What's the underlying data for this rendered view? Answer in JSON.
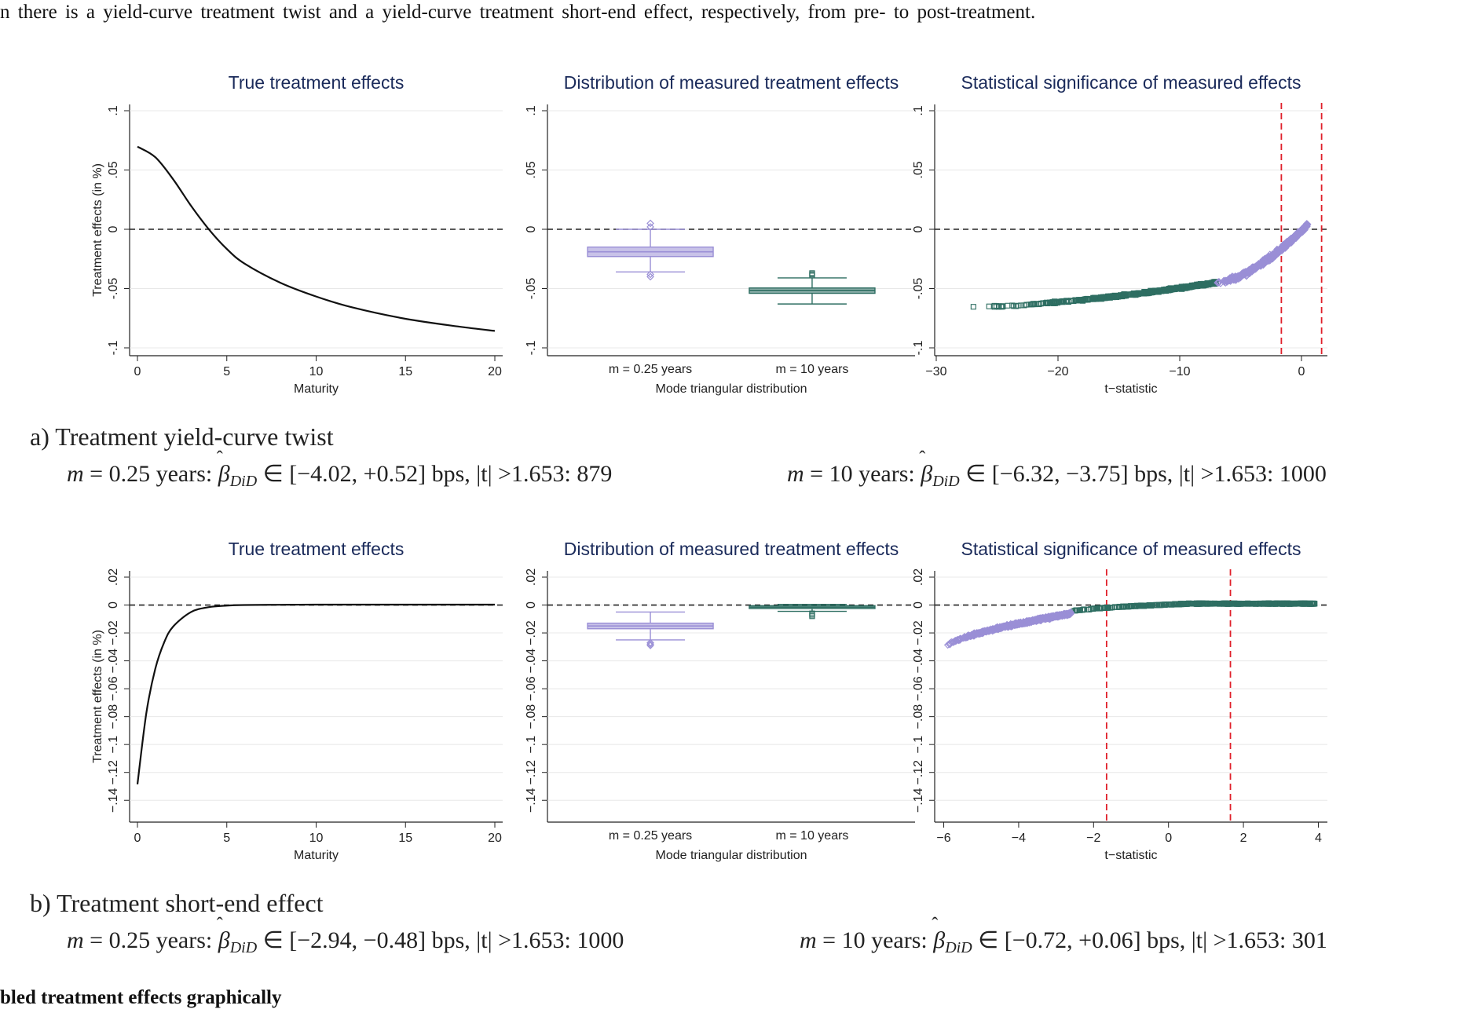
{
  "intro_text": "n there is a yield-curve treatment twist and a yield-curve treatment short-end effect, respectively, from pre- to post-treatment.",
  "footer_text": "bled treatment effects graphically",
  "colors": {
    "lavender": "#9a8fd6",
    "teal": "#2e6e62",
    "red": "#e0202a",
    "title": "#1a2a5a"
  },
  "panels": [
    {
      "caption": {
        "title": "a) Treatment yield-curve twist",
        "left": {
          "m": "m",
          "eq": "= 0.25 years:",
          "beta": "β",
          "sub": "DiD",
          "range": "∈ [−4.02, +0.52] bps, |t| >1.653:",
          "count": "879"
        },
        "right": {
          "m": "m",
          "eq": "= 10 years:",
          "beta": "β",
          "sub": "DiD",
          "range": "∈ [−6.32, −3.75] bps, |t| >1.653:",
          "count": "1000"
        }
      }
    },
    {
      "caption": {
        "title": "b) Treatment short-end effect",
        "left": {
          "m": "m",
          "eq": "= 0.25 years:",
          "beta": "β",
          "sub": "DiD",
          "range": "∈ [−2.94, −0.48] bps, |t| >1.653:",
          "count": "1000"
        },
        "right": {
          "m": "m",
          "eq": "= 10 years:",
          "beta": "β",
          "sub": "DiD",
          "range": "∈ [−0.72, +0.06] bps, |t| >1.653:",
          "count": "301"
        }
      }
    }
  ],
  "chart_data": [
    {
      "type": "line",
      "title": "True treatment effects",
      "xlabel": "Maturity",
      "ylabel": "Treatment effects (in %)",
      "xlim": [
        0,
        20
      ],
      "ylim": [
        -0.1,
        0.1
      ],
      "xticks": [
        "0",
        "5",
        "10",
        "15",
        "20"
      ],
      "yticks": [
        "-.1",
        "-.05",
        "0",
        ".05",
        ".1"
      ],
      "reference_line": 0,
      "series": [
        {
          "x": [
            0,
            1,
            2,
            3,
            4,
            5,
            6,
            8,
            10,
            12,
            15,
            18,
            20
          ],
          "y": [
            0.0697,
            0.0608,
            0.0421,
            0.0198,
            -0.0001,
            -0.0166,
            -0.029,
            -0.0451,
            -0.0567,
            -0.0658,
            -0.0755,
            -0.0821,
            -0.0857
          ]
        }
      ]
    },
    {
      "type": "box",
      "title": "Distribution of measured treatment effects",
      "xlabel": "Mode triangular distribution",
      "categories": [
        "m = 0.25 years",
        "m = 10 years"
      ],
      "ylim": [
        -0.1,
        0.1
      ],
      "yticks": [
        "-.1",
        "-.05",
        "0",
        ".05",
        ".1"
      ],
      "reference_line": 0,
      "boxes": [
        {
          "category": "m = 0.25 years",
          "min": -0.036,
          "q1": -0.023,
          "median": -0.019,
          "q3": -0.015,
          "max": 0.0,
          "outliers": [
            0.002,
            0.005,
            -0.038,
            -0.04
          ]
        },
        {
          "category": "m = 10 years",
          "min": -0.063,
          "q1": -0.054,
          "median": -0.0515,
          "q3": -0.0495,
          "max": -0.041,
          "outliers": [
            -0.037,
            -0.038,
            -0.039
          ]
        }
      ]
    },
    {
      "type": "scatter",
      "title": "Statistical significance of measured effects",
      "xlabel": "t−statistic",
      "xlim": [
        -30,
        2
      ],
      "ylim": [
        -0.1,
        0.1
      ],
      "xticks": [
        "−30",
        "−20",
        "−10",
        "0"
      ],
      "yticks": [
        "-.1",
        "-.05",
        "0",
        ".05",
        ".1"
      ],
      "reference_line": 0,
      "critical_values": [
        -1.653,
        1.653
      ],
      "series": [
        {
          "category": "m = 0.25 years",
          "t_range": [
            -7,
            0.5
          ],
          "effect_range": [
            -0.045,
            0.004
          ]
        },
        {
          "category": "m = 10 years",
          "t_range": [
            -28,
            -7
          ],
          "effect_range": [
            -0.066,
            -0.045
          ]
        }
      ]
    },
    {
      "type": "line",
      "title": "True treatment effects",
      "xlabel": "Maturity",
      "ylabel": "Treatment effects (in %)",
      "xlim": [
        0,
        20
      ],
      "ylim": [
        -0.15,
        0.02
      ],
      "xticks": [
        "0",
        "5",
        "10",
        "15",
        "20"
      ],
      "yticks": [
        "−.14",
        "−.12",
        "−.1",
        "−.08",
        "−.06",
        "−.04",
        "−.02",
        "0",
        ".02"
      ],
      "reference_line": 0,
      "series": [
        {
          "x": [
            0,
            0.5,
            1,
            1.5,
            2,
            3,
            4,
            5,
            6,
            8,
            10,
            15,
            20
          ],
          "y": [
            -0.1285,
            -0.0772,
            -0.0456,
            -0.0266,
            -0.0154,
            -0.005,
            -0.0015,
            -0.0004,
            0.0,
            0.0002,
            0.0003,
            0.0003,
            0.0003
          ]
        }
      ]
    },
    {
      "type": "box",
      "title": "Distribution of measured treatment effects",
      "xlabel": "Mode triangular distribution",
      "categories": [
        "m = 0.25 years",
        "m = 10 years"
      ],
      "ylim": [
        -0.15,
        0.02
      ],
      "yticks": [
        "−.14",
        "−.12",
        "−.1",
        "−.08",
        "−.06",
        "−.04",
        "−.02",
        "0",
        ".02"
      ],
      "reference_line": 0,
      "boxes": [
        {
          "category": "m = 0.25 years",
          "min": -0.025,
          "q1": -0.017,
          "median": -0.015,
          "q3": -0.013,
          "max": -0.005,
          "outliers": [
            -0.027,
            -0.028,
            -0.029
          ]
        },
        {
          "category": "m = 10 years",
          "min": -0.0045,
          "q1": -0.0025,
          "median": -0.0015,
          "q3": -0.0005,
          "max": 0.0005,
          "outliers": [
            -0.006,
            -0.007,
            -0.008
          ]
        }
      ]
    },
    {
      "type": "scatter",
      "title": "Statistical significance of measured effects",
      "xlabel": "t−statistic",
      "xlim": [
        -6.2,
        4.2
      ],
      "ylim": [
        -0.15,
        0.02
      ],
      "xticks": [
        "−6",
        "−4",
        "−2",
        "0",
        "2",
        "4"
      ],
      "yticks": [
        "−.14",
        "−.12",
        "−.1",
        "−.08",
        "−.06",
        "−.04",
        "−.02",
        "0",
        ".02"
      ],
      "reference_line": 0,
      "critical_values": [
        -1.653,
        1.653
      ],
      "series": [
        {
          "category": "m = 0.25 years",
          "t_range": [
            -5.9,
            -2.6
          ],
          "effect_range": [
            -0.029,
            -0.006
          ]
        },
        {
          "category": "m = 10 years",
          "t_range": [
            -3,
            3.9
          ],
          "effect_range": [
            -0.009,
            0.001
          ]
        }
      ]
    }
  ]
}
